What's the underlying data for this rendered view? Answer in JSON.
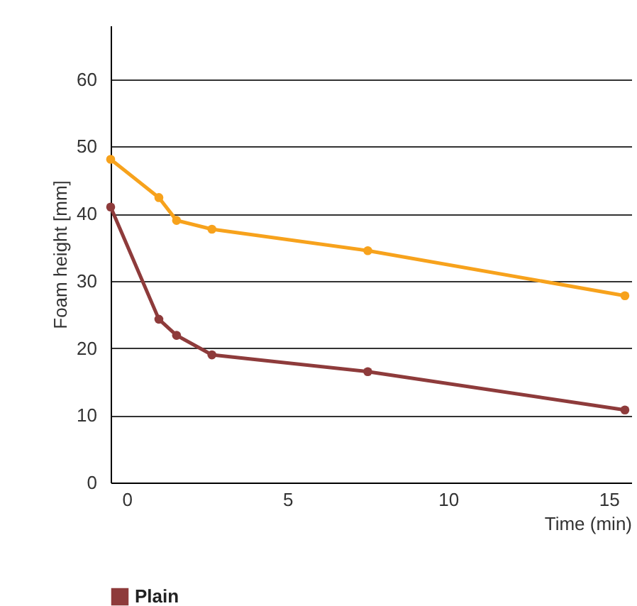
{
  "chart_data": {
    "type": "line",
    "xlabel": "Time (min)",
    "ylabel": "Foam height [mm]",
    "xlim": [
      -0.5,
      15.7
    ],
    "xticks": [
      0,
      5,
      10,
      15
    ],
    "ylim": [
      0,
      68
    ],
    "yticks": [
      0,
      10,
      20,
      30,
      40,
      50,
      60
    ],
    "grid": "y",
    "legend": "bottom",
    "marker": "circle",
    "line_style": "solid",
    "series": [
      {
        "name": "Plain",
        "color": "#8e3b3b",
        "x": [
          -0.5,
          1.0,
          1.55,
          2.65,
          7.5,
          15.5
        ],
        "values": [
          41,
          24.3,
          21.9,
          19,
          16.5,
          10.8
        ]
      },
      {
        "color": "#f7a21c",
        "x": [
          -0.5,
          1.0,
          1.55,
          2.65,
          7.5,
          15.5
        ],
        "values": [
          48.1,
          42.4,
          39,
          37.7,
          34.5,
          27.8
        ]
      }
    ]
  }
}
